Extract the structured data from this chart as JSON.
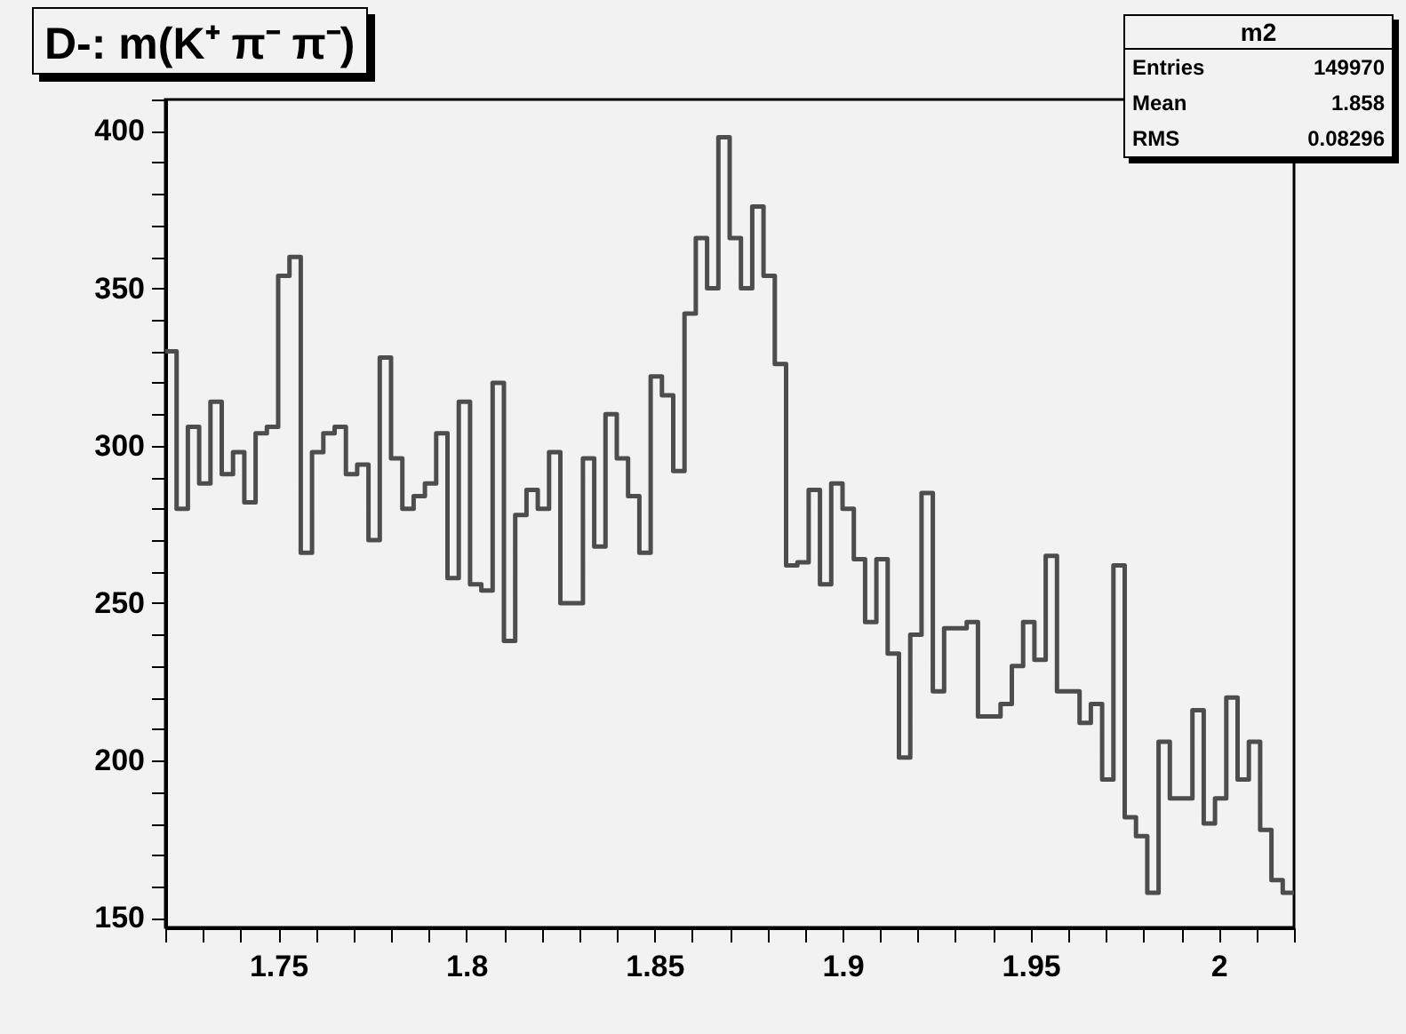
{
  "chart_data": {
    "type": "histogram",
    "title": "D-: m(K⁺ π⁻ π⁻)",
    "annotations": [
      "m2",
      "Entries 149970",
      "Mean 1.858",
      "RMS 0.08296"
    ],
    "bins": [
      1.72,
      1.723,
      1.726,
      1.729,
      1.732,
      1.735,
      1.738,
      1.741,
      1.744,
      1.747,
      1.75,
      1.753,
      1.756,
      1.759,
      1.762,
      1.765,
      1.768,
      1.771,
      1.774,
      1.777,
      1.78,
      1.783,
      1.786,
      1.789,
      1.792,
      1.795,
      1.798,
      1.801,
      1.804,
      1.807,
      1.81,
      1.813,
      1.816,
      1.819,
      1.822,
      1.825,
      1.828,
      1.831,
      1.834,
      1.837,
      1.84,
      1.843,
      1.846,
      1.849,
      1.852,
      1.855,
      1.858,
      1.861,
      1.864,
      1.867,
      1.87,
      1.873,
      1.876,
      1.879,
      1.882,
      1.885,
      1.888,
      1.891,
      1.894,
      1.897,
      1.9,
      1.903,
      1.906,
      1.909,
      1.912,
      1.915,
      1.918,
      1.921,
      1.924,
      1.927,
      1.93,
      1.933,
      1.936,
      1.939,
      1.942,
      1.945,
      1.948,
      1.951,
      1.954,
      1.957,
      1.96,
      1.963,
      1.966,
      1.969,
      1.972,
      1.975,
      1.978,
      1.981,
      1.984,
      1.987,
      1.99,
      1.993,
      1.996,
      1.999,
      2.002,
      2.005,
      2.008,
      2.011,
      2.014,
      2.017,
      2.02
    ],
    "values": [
      330,
      280,
      306,
      288,
      314,
      291,
      298,
      282,
      304,
      306,
      354,
      360,
      266,
      298,
      304,
      306,
      291,
      294,
      270,
      328,
      296,
      280,
      284,
      288,
      304,
      258,
      314,
      256,
      254,
      320,
      238,
      278,
      286,
      280,
      298,
      250,
      250,
      296,
      268,
      310,
      296,
      284,
      266,
      322,
      316,
      292,
      342,
      366,
      350,
      398,
      366,
      350,
      376,
      354,
      326,
      262,
      263,
      286,
      256,
      288,
      280,
      264,
      244,
      264,
      234,
      201,
      240,
      285,
      222,
      242,
      242,
      244,
      214,
      214,
      218,
      230,
      244,
      232,
      265,
      222,
      222,
      212,
      218,
      194,
      262,
      182,
      176,
      158,
      206,
      188,
      188,
      216,
      180,
      188,
      220,
      194,
      206,
      178,
      162,
      158
    ],
    "color": "#4d4d4d",
    "xlim": [
      1.72,
      2.02
    ],
    "xticks": [
      {
        "value": 1.72,
        "label": null
      },
      {
        "value": 1.73,
        "label": null
      },
      {
        "value": 1.74,
        "label": null
      },
      1.75,
      {
        "value": 1.76,
        "label": null
      },
      {
        "value": 1.77,
        "label": null
      },
      {
        "value": 1.78,
        "label": null
      },
      {
        "value": 1.79,
        "label": null
      },
      1.8,
      {
        "value": 1.81,
        "label": null
      },
      {
        "value": 1.82,
        "label": null
      },
      {
        "value": 1.83,
        "label": null
      },
      {
        "value": 1.84,
        "label": null
      },
      1.85,
      {
        "value": 1.86,
        "label": null
      },
      {
        "value": 1.87,
        "label": null
      },
      {
        "value": 1.88,
        "label": null
      },
      {
        "value": 1.89,
        "label": null
      },
      1.9,
      {
        "value": 1.91,
        "label": null
      },
      {
        "value": 1.92,
        "label": null
      },
      {
        "value": 1.93,
        "label": null
      },
      {
        "value": 1.94,
        "label": null
      },
      1.95,
      {
        "value": 1.96,
        "label": null
      },
      {
        "value": 1.97,
        "label": null
      },
      {
        "value": 1.98,
        "label": null
      },
      {
        "value": 1.99,
        "label": null
      },
      2,
      {
        "value": 2.01,
        "label": null
      },
      {
        "value": 2.02,
        "label": null
      }
    ],
    "ylim": [
      147,
      410
    ],
    "yticks": [
      150,
      {
        "value": 160,
        "label": null
      },
      {
        "value": 170,
        "label": null
      },
      {
        "value": 180,
        "label": null
      },
      {
        "value": 190,
        "label": null
      },
      200,
      {
        "value": 210,
        "label": null
      },
      {
        "value": 220,
        "label": null
      },
      {
        "value": 230,
        "label": null
      },
      {
        "value": 240,
        "label": null
      },
      250,
      {
        "value": 260,
        "label": null
      },
      {
        "value": 270,
        "label": null
      },
      {
        "value": 280,
        "label": null
      },
      {
        "value": 290,
        "label": null
      },
      300,
      {
        "value": 310,
        "label": null
      },
      {
        "value": 320,
        "label": null
      },
      {
        "value": 330,
        "label": null
      },
      {
        "value": 340,
        "label": null
      },
      350,
      {
        "value": 360,
        "label": null
      },
      {
        "value": 370,
        "label": null
      },
      {
        "value": 380,
        "label": null
      },
      {
        "value": 390,
        "label": null
      },
      400,
      {
        "value": 410,
        "label": null
      }
    ]
  }
}
